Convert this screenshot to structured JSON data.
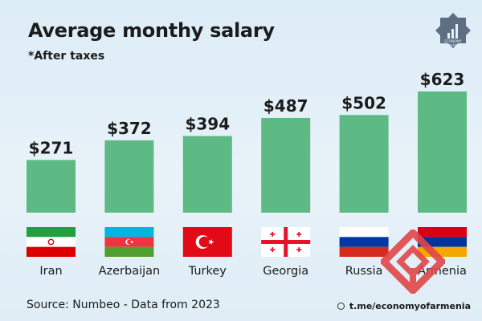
{
  "header": {
    "title": "Average monthy salary",
    "subtitle": "*After taxes"
  },
  "logo": {
    "line1": "ECONOMY",
    "line2": "OF ARMENIA"
  },
  "footer": {
    "source": "Source: Numbeo - Data from 2023",
    "social_handle": "t.me/economyofarmenia"
  },
  "colors": {
    "bar": "#5dba84",
    "text": "#1c1c1c",
    "watermark": "#e0474a"
  },
  "chart_data": {
    "type": "bar",
    "title": "Average monthy salary",
    "subtitle": "*After taxes",
    "categories": [
      "Iran",
      "Azerbaijan",
      "Turkey",
      "Georgia",
      "Russia",
      "Armenia"
    ],
    "values": [
      271,
      372,
      394,
      487,
      502,
      623
    ],
    "value_labels": [
      "$271",
      "$372",
      "$394",
      "$487",
      "$502",
      "$623"
    ],
    "flags": [
      "iran-flag",
      "azerbaijan-flag",
      "turkey-flag",
      "georgia-flag",
      "russia-flag",
      "armenia-flag"
    ],
    "ylim": [
      0,
      623
    ],
    "grid": false,
    "legend": "none"
  }
}
